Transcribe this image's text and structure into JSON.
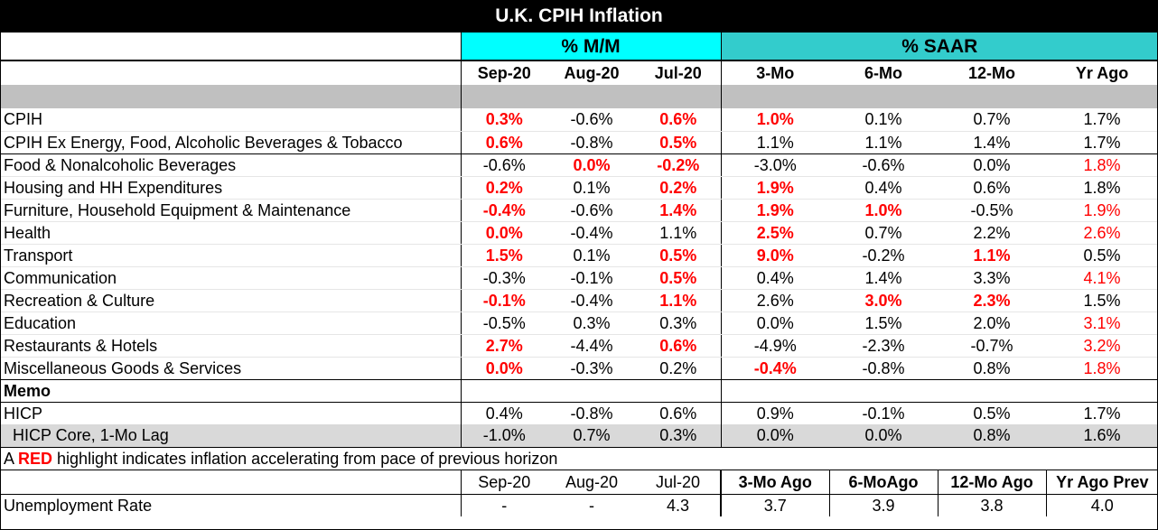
{
  "title": "U.K. CPIH Inflation",
  "groups": {
    "mm": "% M/M",
    "saar": "% SAAR"
  },
  "columns": [
    "Sep-20",
    "Aug-20",
    "Jul-20",
    "3-Mo",
    "6-Mo",
    "12-Mo",
    "Yr Ago"
  ],
  "rows": [
    {
      "label": "CPIH",
      "values": [
        "0.3%",
        "-0.6%",
        "0.6%",
        "1.0%",
        "0.1%",
        "0.7%",
        "1.7%"
      ]
    },
    {
      "label": " CPIH Ex Energy, Food, Alcoholic Beverages & Tobacco",
      "values": [
        "0.6%",
        "-0.8%",
        "0.5%",
        "1.1%",
        "1.1%",
        "1.4%",
        "1.7%"
      ]
    },
    {
      "label": "Food & Nonalcoholic Beverages",
      "values": [
        "-0.6%",
        "0.0%",
        "-0.2%",
        "-3.0%",
        "-0.6%",
        "0.0%",
        "1.8%"
      ]
    },
    {
      "label": "Housing and HH Expenditures",
      "values": [
        "0.2%",
        "0.1%",
        "0.2%",
        "1.9%",
        "0.4%",
        "0.6%",
        "1.8%"
      ]
    },
    {
      "label": "Furniture, Household Equipment & Maintenance",
      "values": [
        "-0.4%",
        "-0.6%",
        "1.4%",
        "1.9%",
        "1.0%",
        "-0.5%",
        "1.9%"
      ]
    },
    {
      "label": "Health",
      "values": [
        "0.0%",
        "-0.4%",
        "1.1%",
        "2.5%",
        "0.7%",
        "2.2%",
        "2.6%"
      ]
    },
    {
      "label": "Transport",
      "values": [
        "1.5%",
        "0.1%",
        "0.5%",
        "9.0%",
        "-0.2%",
        "1.1%",
        "0.5%"
      ]
    },
    {
      "label": "Communication",
      "values": [
        "-0.3%",
        "-0.1%",
        "0.5%",
        "0.4%",
        "1.4%",
        "3.3%",
        "4.1%"
      ]
    },
    {
      "label": "Recreation & Culture",
      "values": [
        "-0.1%",
        "-0.4%",
        "1.1%",
        "2.6%",
        "3.0%",
        "2.3%",
        "1.5%"
      ]
    },
    {
      "label": "Education",
      "values": [
        "-0.5%",
        "0.3%",
        "0.3%",
        "0.0%",
        "1.5%",
        "2.0%",
        "3.1%"
      ]
    },
    {
      "label": "Restaurants & Hotels",
      "values": [
        "2.7%",
        "-4.4%",
        "0.6%",
        "-4.9%",
        "-2.3%",
        "-0.7%",
        "3.2%"
      ]
    },
    {
      "label": "Miscellaneous Goods & Services",
      "values": [
        "0.0%",
        "-0.3%",
        "0.2%",
        "-0.4%",
        "-0.8%",
        "0.8%",
        "1.8%"
      ]
    }
  ],
  "memo": {
    "label": "Memo",
    "rows": [
      {
        "label": "HICP",
        "values": [
          "0.4%",
          "-0.8%",
          "0.6%",
          "0.9%",
          "-0.1%",
          "0.5%",
          "1.7%"
        ]
      },
      {
        "label": "  HICP Core, 1-Mo Lag",
        "values": [
          "-1.0%",
          "0.7%",
          "0.3%",
          "0.0%",
          "0.0%",
          "0.8%",
          "1.6%"
        ]
      }
    ]
  },
  "note": {
    "prefix": "A ",
    "highlight": "RED",
    "suffix": " highlight indicates inflation accelerating from pace of previous horizon"
  },
  "unemployment": {
    "columns": [
      "Sep-20",
      "Aug-20",
      "Jul-20",
      "3-Mo Ago",
      "6-MoAgo",
      "12-Mo Ago",
      "Yr Ago Prev"
    ],
    "label": "Unemployment Rate",
    "values": [
      "-",
      "-",
      "4.3",
      "3.7",
      "3.9",
      "3.8",
      "4.0"
    ]
  },
  "colors": {
    "red": "#ff0000",
    "mm_header": "#00ffff",
    "saar_header": "#33cccc",
    "gray_band": "#c0c0c0",
    "title_bg": "#000000"
  }
}
